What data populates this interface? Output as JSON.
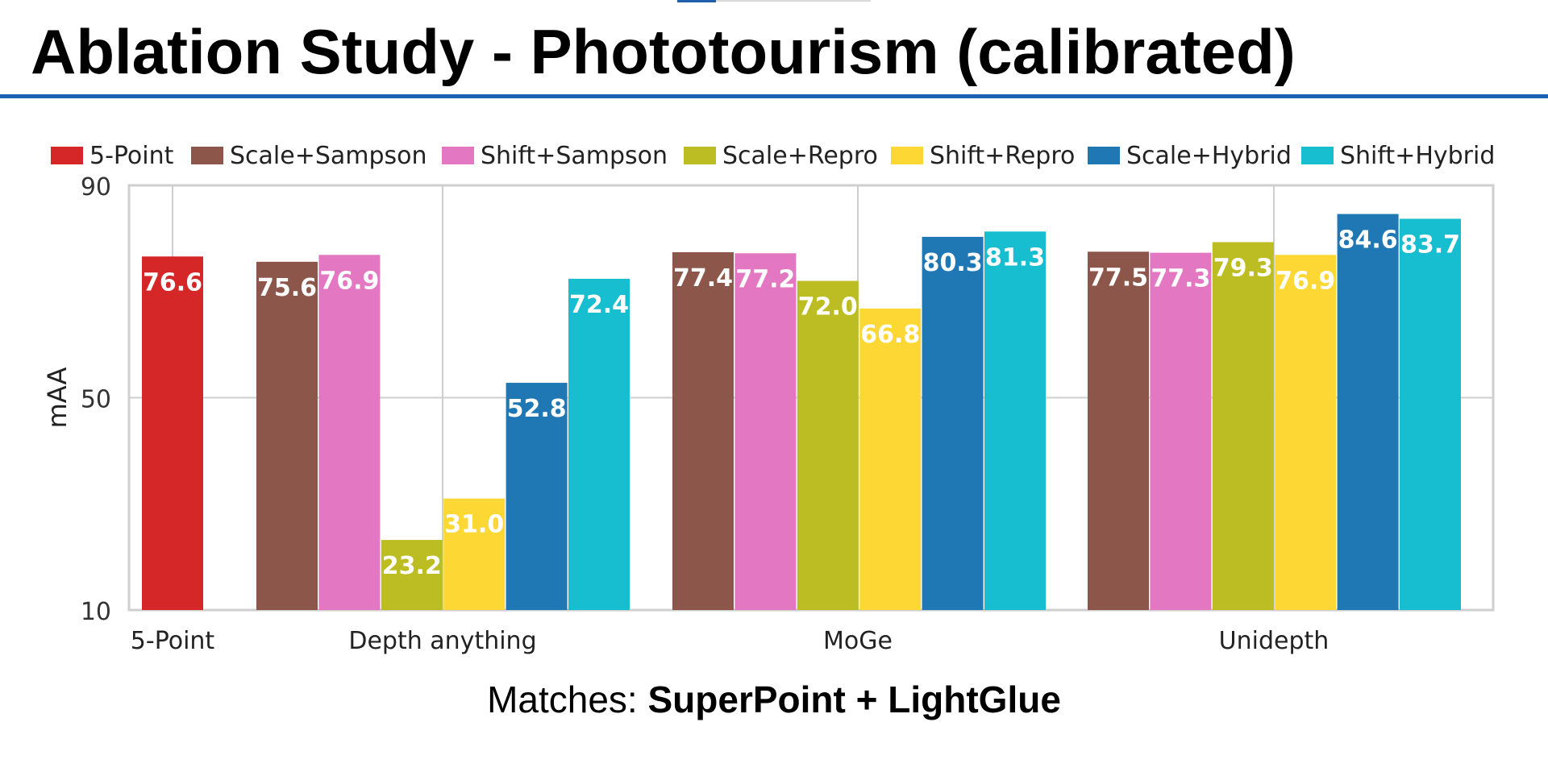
{
  "title": "Ablation Study - Phototourism (calibrated)",
  "subtitle": {
    "prefix": "Matches: ",
    "bold": "SuperPoint + LightGlue"
  },
  "chart_data": {
    "type": "bar",
    "ylabel": "mAA",
    "xlabel": "",
    "ylim": [
      10,
      90
    ],
    "yticks": [
      10,
      50,
      90
    ],
    "grid": true,
    "legend_position": "top",
    "categories": [
      "5-Point",
      "Depth anything",
      "MoGe",
      "Unidepth"
    ],
    "series": [
      {
        "name": "5-Point",
        "color": "#d62728",
        "values": [
          76.6,
          null,
          null,
          null
        ]
      },
      {
        "name": "Scale+Sampson",
        "color": "#8c564b",
        "values": [
          null,
          75.6,
          77.4,
          77.5
        ]
      },
      {
        "name": "Shift+Sampson",
        "color": "#e377c2",
        "values": [
          null,
          76.9,
          77.2,
          77.3
        ]
      },
      {
        "name": "Scale+Repro",
        "color": "#bcbd22",
        "values": [
          null,
          23.2,
          72.0,
          79.3
        ]
      },
      {
        "name": "Shift+Repro",
        "color": "#fdd835",
        "values": [
          null,
          31.0,
          66.8,
          76.9
        ]
      },
      {
        "name": "Scale+Hybrid",
        "color": "#1f77b4",
        "values": [
          null,
          52.8,
          80.3,
          84.6
        ]
      },
      {
        "name": "Shift+Hybrid",
        "color": "#17becf",
        "values": [
          null,
          72.4,
          81.3,
          83.7
        ]
      }
    ]
  }
}
